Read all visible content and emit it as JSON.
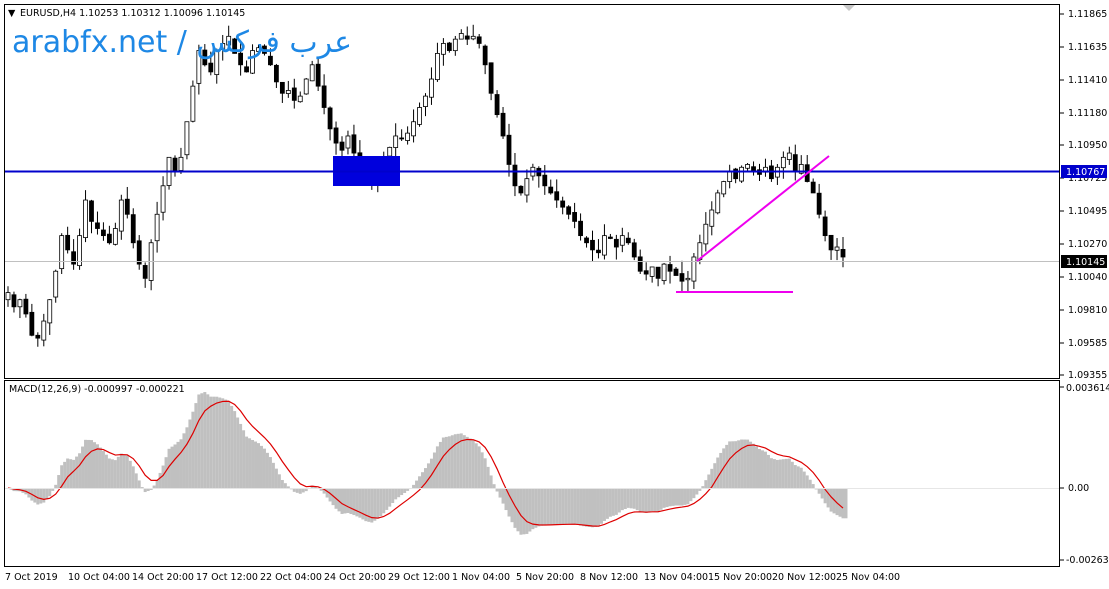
{
  "header": {
    "symbol_line": "EURUSD,H4  1.10253 1.10312 1.10096 1.10145",
    "watermark": "arabfx.net / عرب فركس"
  },
  "main_chart": {
    "price_axis_labels": [
      "1.11865",
      "1.11635",
      "1.11410",
      "1.11180",
      "1.10950",
      "1.10725",
      "1.10495",
      "1.10270",
      "1.10040",
      "1.09810",
      "1.09585",
      "1.09355"
    ],
    "hline_label": "1.10767",
    "current_price_label": "1.10145"
  },
  "macd": {
    "title": "MACD(12,26,9) -0.000997 -0.000221",
    "axis_labels": [
      "0.003614",
      "0.00",
      "-0.002639"
    ]
  },
  "time_axis": {
    "labels": [
      "7 Oct 2019",
      "10 Oct 04:00",
      "14 Oct 20:00",
      "17 Oct 12:00",
      "22 Oct 04:00",
      "24 Oct 20:00",
      "29 Oct 12:00",
      "1 Nov 04:00",
      "5 Nov 20:00",
      "8 Nov 12:00",
      "13 Nov 04:00",
      "15 Nov 20:00",
      "20 Nov 12:00",
      "25 Nov 04:00"
    ]
  },
  "colors": {
    "background": "#ffffff",
    "candle": "#000000",
    "hline": "#0000cc",
    "zone_box": "#0000dd",
    "trendline": "#ee00ee",
    "histogram": "#c0c0c0",
    "signal": "#dd0000",
    "watermark": "#1e88e5"
  },
  "chart_data": {
    "type": "candlestick",
    "symbol": "EURUSD",
    "timeframe": "H4",
    "ylim": [
      1.093,
      1.1192
    ],
    "closes": [
      1.099,
      1.098,
      1.0985,
      1.0975,
      1.096,
      1.0958,
      1.097,
      1.0985,
      1.1005,
      1.103,
      1.102,
      1.101,
      1.103,
      1.1055,
      1.104,
      1.1035,
      1.103,
      1.1025,
      1.1035,
      1.1055,
      1.1045,
      1.1025,
      1.101,
      1.1,
      1.1025,
      1.1045,
      1.1065,
      1.1085,
      1.1075,
      1.1085,
      1.111,
      1.1135,
      1.116,
      1.115,
      1.1145,
      1.116,
      1.1165,
      1.117,
      1.1158,
      1.115,
      1.1145,
      1.116,
      1.1162,
      1.1158,
      1.115,
      1.1138,
      1.113,
      1.1132,
      1.1125,
      1.1128,
      1.114,
      1.115,
      1.1135,
      1.112,
      1.1105,
      1.1095,
      1.109,
      1.11,
      1.1088,
      1.108,
      1.107,
      1.1068,
      1.1078,
      1.1085,
      1.1092,
      1.11,
      1.1098,
      1.1102,
      1.111,
      1.112,
      1.1128,
      1.114,
      1.1158,
      1.1165,
      1.116,
      1.1168,
      1.1172,
      1.1168,
      1.117,
      1.1165,
      1.115,
      1.113,
      1.1115,
      1.11,
      1.108,
      1.1065,
      1.106,
      1.107,
      1.1078,
      1.1072,
      1.1065,
      1.106,
      1.1055,
      1.105,
      1.1045,
      1.104,
      1.103,
      1.1025,
      1.102,
      1.1018,
      1.103,
      1.1028,
      1.1022,
      1.103,
      1.1025,
      1.1015,
      1.1005,
      1.1003,
      1.1008,
      1.1,
      1.101,
      1.1005,
      1.1002,
      1.0998,
      1.1,
      1.1015,
      1.1025,
      1.1038,
      1.1048,
      1.106,
      1.1068,
      1.1075,
      1.107,
      1.1078,
      1.108,
      1.1075,
      1.1073,
      1.1078,
      1.107,
      1.1078,
      1.1085,
      1.1088,
      1.1075,
      1.108,
      1.1068,
      1.106,
      1.1045,
      1.103,
      1.102,
      1.1022,
      1.1015
    ],
    "horizontal_level": 1.10767,
    "current_price": 1.10145,
    "macd": {
      "macd_last": -0.000997,
      "signal_last": -0.000221,
      "ylim": [
        -0.002639,
        0.003614
      ]
    }
  }
}
